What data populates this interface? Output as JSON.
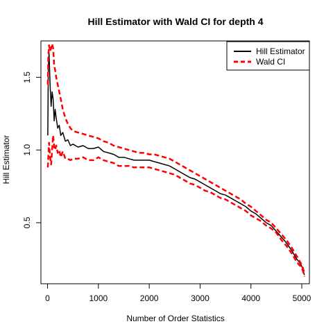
{
  "chart_data": {
    "type": "line",
    "title": "Hill Estimator with Wald CI for depth 4",
    "xlabel": "Number of Order Statistics",
    "ylabel": "Hill Estimator",
    "xlim": [
      -130,
      5150
    ],
    "ylim": [
      0.08,
      1.75
    ],
    "x_ticks": [
      0,
      1000,
      2000,
      3000,
      4000,
      5000
    ],
    "y_ticks": [
      0.5,
      1.0,
      1.5
    ],
    "x_tick_labels": [
      "0",
      "1000",
      "2000",
      "3000",
      "4000",
      "5000"
    ],
    "y_tick_labels": [
      "0.5",
      "1.0",
      "1.5"
    ],
    "grid": false,
    "legend_position": "top-right",
    "series": [
      {
        "name": "Hill Estimator",
        "color": "#000000",
        "dash": "solid",
        "x": [
          5,
          15,
          30,
          50,
          70,
          90,
          110,
          130,
          150,
          170,
          200,
          230,
          260,
          300,
          350,
          400,
          450,
          500,
          600,
          700,
          800,
          900,
          1000,
          1100,
          1200,
          1300,
          1400,
          1500,
          1600,
          1700,
          1800,
          1900,
          2000,
          2100,
          2200,
          2300,
          2400,
          2500,
          2600,
          2700,
          2800,
          2900,
          3000,
          3100,
          3200,
          3300,
          3400,
          3500,
          3600,
          3700,
          3800,
          3900,
          4000,
          4100,
          4200,
          4300,
          4400,
          4500,
          4600,
          4700,
          4800,
          4850,
          4900,
          4950,
          5000,
          5030,
          5050
        ],
        "y": [
          1.1,
          1.55,
          1.67,
          1.45,
          1.3,
          1.4,
          1.35,
          1.2,
          1.28,
          1.22,
          1.15,
          1.17,
          1.1,
          1.12,
          1.06,
          1.07,
          1.03,
          1.04,
          1.02,
          1.03,
          1.01,
          1.01,
          1.02,
          0.99,
          0.98,
          0.97,
          0.95,
          0.95,
          0.94,
          0.93,
          0.93,
          0.93,
          0.93,
          0.92,
          0.91,
          0.9,
          0.89,
          0.87,
          0.85,
          0.83,
          0.81,
          0.8,
          0.78,
          0.76,
          0.74,
          0.72,
          0.7,
          0.69,
          0.67,
          0.65,
          0.63,
          0.61,
          0.58,
          0.56,
          0.53,
          0.5,
          0.48,
          0.44,
          0.4,
          0.36,
          0.31,
          0.28,
          0.25,
          0.23,
          0.2,
          0.17,
          0.14
        ]
      },
      {
        "name": "Wald CI",
        "color": "#ff0000",
        "dash": "dashed",
        "x": [
          5,
          15,
          30,
          50,
          70,
          90,
          110,
          130,
          150,
          170,
          200,
          230,
          260,
          300,
          350,
          400,
          450,
          500,
          600,
          700,
          800,
          900,
          1000,
          1100,
          1200,
          1300,
          1400,
          1500,
          1600,
          1700,
          1800,
          1900,
          2000,
          2100,
          2200,
          2300,
          2400,
          2500,
          2600,
          2700,
          2800,
          2900,
          3000,
          3100,
          3200,
          3300,
          3400,
          3500,
          3600,
          3700,
          3800,
          3900,
          4000,
          4100,
          4200,
          4300,
          4400,
          4500,
          4600,
          4700,
          4800,
          4850,
          4900,
          4950,
          5000,
          5030,
          5050
        ],
        "y": [
          1.45,
          1.64,
          1.72,
          1.68,
          1.7,
          1.73,
          1.7,
          1.58,
          1.55,
          1.5,
          1.45,
          1.4,
          1.35,
          1.28,
          1.22,
          1.18,
          1.15,
          1.13,
          1.12,
          1.11,
          1.1,
          1.09,
          1.08,
          1.06,
          1.05,
          1.03,
          1.02,
          1.01,
          1.0,
          0.99,
          0.98,
          0.98,
          0.97,
          0.97,
          0.96,
          0.95,
          0.94,
          0.92,
          0.9,
          0.88,
          0.86,
          0.84,
          0.82,
          0.8,
          0.78,
          0.76,
          0.74,
          0.72,
          0.7,
          0.68,
          0.66,
          0.63,
          0.61,
          0.58,
          0.55,
          0.52,
          0.5,
          0.46,
          0.42,
          0.38,
          0.33,
          0.3,
          0.27,
          0.24,
          0.21,
          0.18,
          0.15
        ]
      },
      {
        "name": "Wald CI",
        "color": "#ff0000",
        "dash": "dashed",
        "x": [
          5,
          15,
          30,
          50,
          70,
          90,
          110,
          130,
          150,
          170,
          200,
          230,
          260,
          300,
          350,
          400,
          450,
          500,
          600,
          700,
          800,
          900,
          1000,
          1100,
          1200,
          1300,
          1400,
          1500,
          1600,
          1700,
          1800,
          1900,
          2000,
          2100,
          2200,
          2300,
          2400,
          2500,
          2600,
          2700,
          2800,
          2900,
          3000,
          3100,
          3200,
          3300,
          3400,
          3500,
          3600,
          3700,
          3800,
          3900,
          4000,
          4100,
          4200,
          4300,
          4400,
          4500,
          4600,
          4700,
          4800,
          4850,
          4900,
          4950,
          5000,
          5030,
          5050
        ],
        "y": [
          0.88,
          0.95,
          1.05,
          0.95,
          0.9,
          1.0,
          1.1,
          1.02,
          1.0,
          1.03,
          0.98,
          1.0,
          0.95,
          0.99,
          0.94,
          0.94,
          0.93,
          0.94,
          0.94,
          0.95,
          0.93,
          0.93,
          0.95,
          0.93,
          0.92,
          0.91,
          0.89,
          0.89,
          0.89,
          0.88,
          0.88,
          0.88,
          0.88,
          0.87,
          0.86,
          0.85,
          0.84,
          0.83,
          0.81,
          0.79,
          0.77,
          0.76,
          0.74,
          0.72,
          0.71,
          0.69,
          0.67,
          0.66,
          0.64,
          0.62,
          0.6,
          0.58,
          0.55,
          0.53,
          0.51,
          0.48,
          0.46,
          0.43,
          0.38,
          0.34,
          0.29,
          0.26,
          0.23,
          0.21,
          0.19,
          0.16,
          0.13
        ]
      }
    ]
  }
}
